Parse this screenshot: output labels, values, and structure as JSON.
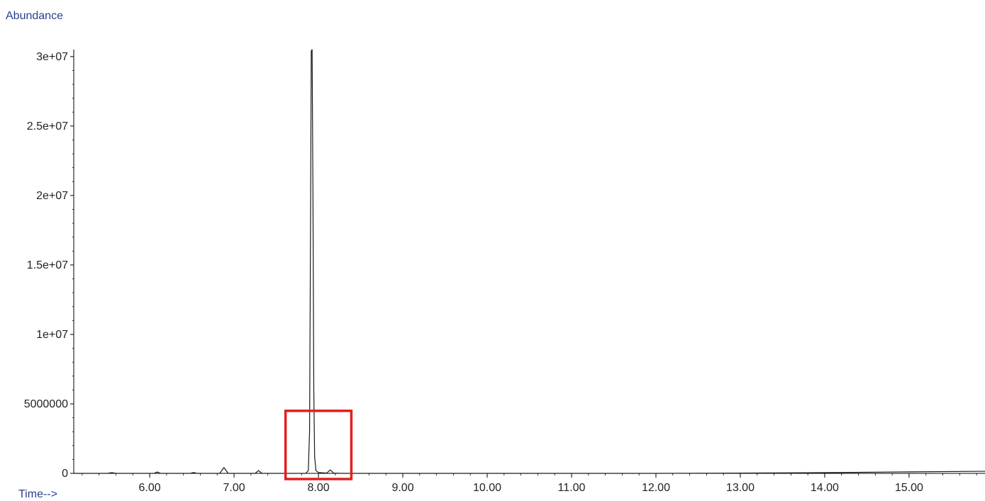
{
  "chart_data": {
    "type": "line",
    "ylabel": "Abundance",
    "xlabel": "Time-->",
    "xlim": [
      5.1,
      15.9
    ],
    "ylim": [
      0,
      30500000
    ],
    "xticks": [
      6.0,
      7.0,
      8.0,
      9.0,
      10.0,
      11.0,
      12.0,
      13.0,
      14.0,
      15.0
    ],
    "xtick_labels": [
      "6.00",
      "7.00",
      "8.00",
      "9.00",
      "10.00",
      "11.00",
      "12.00",
      "13.00",
      "14.00",
      "15.00"
    ],
    "yticks": [
      0,
      5000000,
      10000000,
      15000000,
      20000000,
      25000000,
      30000000
    ],
    "ytick_labels": [
      "0",
      "5000000",
      "1e+07",
      "1.5e+07",
      "2e+07",
      "2.5e+07",
      "3e+07"
    ],
    "series": [
      {
        "color": "#1a1a1a",
        "x": [
          5.1,
          5.5,
          5.55,
          5.6,
          6.05,
          6.09,
          6.13,
          6.48,
          6.52,
          6.56,
          6.83,
          6.88,
          6.93,
          7.25,
          7.29,
          7.33,
          7.85,
          7.88,
          7.895,
          7.905,
          7.915,
          7.925,
          7.935,
          7.945,
          7.955,
          7.97,
          8.0,
          8.1,
          8.14,
          8.18,
          8.3,
          9.0,
          10.0,
          11.0,
          12.0,
          13.0,
          14.0,
          15.0,
          15.9
        ],
        "y": [
          0,
          0,
          50000,
          0,
          0,
          100000,
          0,
          0,
          60000,
          0,
          0,
          420000,
          0,
          0,
          200000,
          0,
          0,
          200000,
          3000000,
          16000000,
          30400000,
          30500000,
          20000000,
          6000000,
          1200000,
          200000,
          60000,
          20000,
          250000,
          20000,
          0,
          0,
          0,
          0,
          0,
          20000,
          50000,
          110000,
          150000
        ]
      }
    ],
    "annotations": [
      {
        "type": "rectangle",
        "color": "#e02020",
        "x_range": [
          7.61,
          8.39
        ],
        "y_range": [
          0,
          4500000
        ]
      }
    ],
    "grid": false
  }
}
